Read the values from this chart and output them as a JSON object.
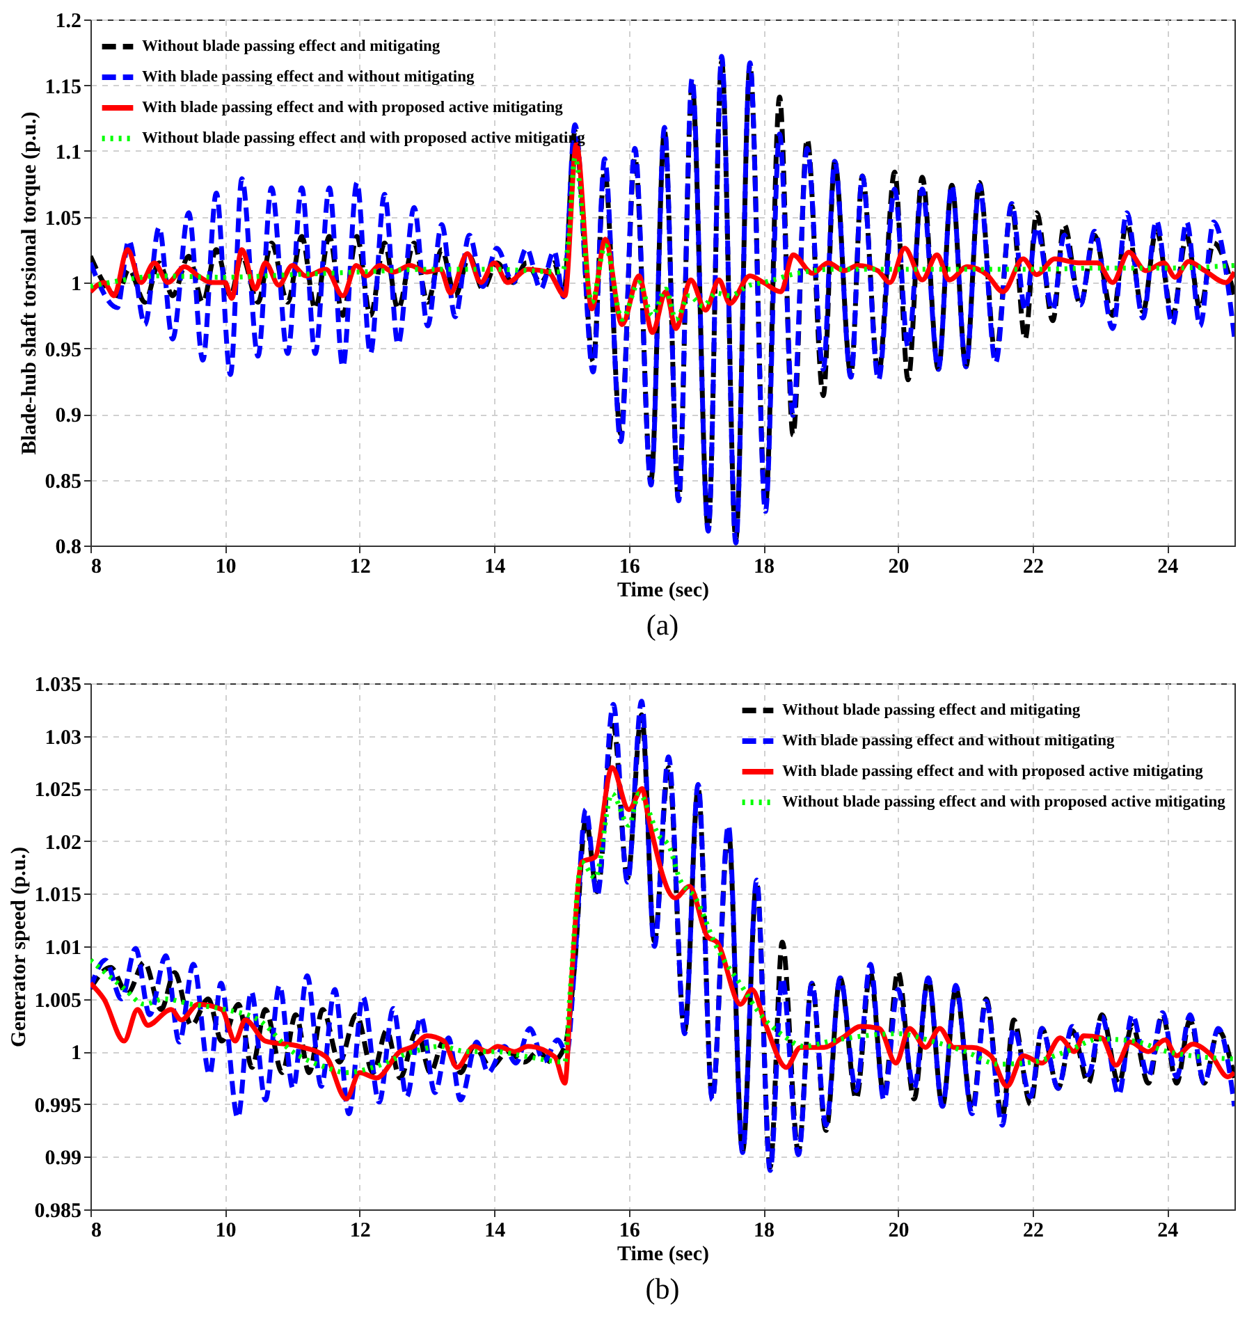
{
  "chart_data": [
    {
      "type": "line",
      "title": "(a)",
      "xlabel": "Time (sec)",
      "ylabel": "Blade-hub shaft torsional torque (p.u.)",
      "xlim": [
        8,
        25
      ],
      "ylim": [
        0.8,
        1.2
      ],
      "xticks": [
        8,
        10,
        12,
        14,
        16,
        18,
        20,
        22,
        24
      ],
      "yticks": [
        0.8,
        0.85,
        0.9,
        0.95,
        1,
        1.05,
        1.1,
        1.15,
        1.2
      ],
      "grid": true,
      "legend": "top left",
      "series": [
        {
          "name": "Without blade passing effect and mitigating",
          "color": "#000000",
          "line_style": "dashed",
          "x": [
            8.0,
            8.4,
            8.57,
            8.81,
            9.02,
            9.22,
            9.46,
            9.67,
            9.87,
            10.08,
            10.25,
            10.49,
            10.69,
            10.93,
            11.14,
            11.34,
            11.55,
            11.75,
            11.96,
            12.16,
            12.37,
            12.57,
            12.81,
            13.01,
            13.22,
            13.42,
            13.63,
            13.83,
            14.04,
            14.28,
            14.48,
            14.69,
            14.89,
            15.03,
            15.2,
            15.47,
            15.64,
            15.88,
            16.09,
            16.33,
            16.53,
            16.74,
            16.94,
            17.18,
            17.38,
            17.59,
            17.8,
            18.03,
            18.24,
            18.44,
            18.65,
            18.89,
            19.06,
            19.3,
            19.47,
            19.71,
            19.95,
            20.15,
            20.36,
            20.6,
            20.8,
            21.01,
            21.21,
            21.45,
            21.69,
            21.89,
            22.06,
            22.3,
            22.47,
            22.71,
            22.92,
            23.19,
            23.4,
            23.64,
            23.84,
            24.08,
            24.29,
            24.49,
            24.69,
            25.0
          ],
          "values": [
            1.02,
            0.99,
            1.01,
            0.985,
            1.015,
            0.99,
            1.02,
            0.985,
            1.025,
            0.99,
            1.02,
            0.985,
            1.03,
            0.985,
            1.035,
            0.98,
            1.035,
            0.975,
            1.035,
            0.975,
            1.03,
            0.98,
            1.03,
            0.985,
            1.025,
            0.99,
            1.02,
            0.995,
            1.015,
            1.0,
            1.015,
            1.0,
            1.015,
            0.99,
            1.115,
            0.94,
            1.085,
            0.885,
            1.095,
            0.85,
            1.115,
            0.835,
            1.15,
            0.813,
            1.168,
            0.805,
            1.165,
            0.83,
            1.141,
            0.884,
            1.109,
            0.914,
            1.092,
            0.93,
            1.081,
            0.93,
            1.084,
            0.926,
            1.08,
            0.934,
            1.074,
            0.936,
            1.076,
            0.945,
            1.058,
            0.957,
            1.053,
            0.971,
            1.044,
            0.983,
            1.036,
            0.975,
            1.045,
            0.978,
            1.04,
            0.975,
            1.035,
            0.98,
            1.03,
            0.99
          ]
        },
        {
          "name": "With blade passing effect and without mitigating",
          "color": "#0000ff",
          "line_style": "dashed",
          "x": [
            8.0,
            8.4,
            8.57,
            8.81,
            9.02,
            9.22,
            9.46,
            9.67,
            9.87,
            10.08,
            10.25,
            10.49,
            10.69,
            10.93,
            11.14,
            11.34,
            11.55,
            11.75,
            11.96,
            12.16,
            12.37,
            12.57,
            12.81,
            13.01,
            13.22,
            13.42,
            13.63,
            13.83,
            14.04,
            14.28,
            14.48,
            14.69,
            14.89,
            15.03,
            15.2,
            15.47,
            15.64,
            15.88,
            16.09,
            16.33,
            16.53,
            16.74,
            16.94,
            17.18,
            17.38,
            17.59,
            17.8,
            18.03,
            18.24,
            18.44,
            18.65,
            18.89,
            19.06,
            19.3,
            19.47,
            19.71,
            19.95,
            20.15,
            20.36,
            20.6,
            20.8,
            21.01,
            21.21,
            21.45,
            21.69,
            21.89,
            22.06,
            22.3,
            22.47,
            22.71,
            22.92,
            23.19,
            23.4,
            23.64,
            23.84,
            24.08,
            24.29,
            24.49,
            24.69,
            25.0
          ],
          "values": [
            1.015,
            0.981,
            1.032,
            0.968,
            1.042,
            0.957,
            1.053,
            0.941,
            1.068,
            0.93,
            1.079,
            0.944,
            1.072,
            0.946,
            1.072,
            0.946,
            1.072,
            0.936,
            1.076,
            0.946,
            1.067,
            0.953,
            1.057,
            0.967,
            1.044,
            0.974,
            1.036,
            0.997,
            1.026,
            1.0,
            1.026,
            0.995,
            1.024,
            0.989,
            1.12,
            0.932,
            1.094,
            0.879,
            1.102,
            0.846,
            1.118,
            0.834,
            1.155,
            0.811,
            1.172,
            0.802,
            1.167,
            0.826,
            1.113,
            0.899,
            1.102,
            0.934,
            1.092,
            0.928,
            1.081,
            0.926,
            1.071,
            0.951,
            1.071,
            0.934,
            1.074,
            0.936,
            1.074,
            0.939,
            1.06,
            0.979,
            1.042,
            0.979,
            1.036,
            0.983,
            1.039,
            0.965,
            1.053,
            0.973,
            1.047,
            0.968,
            1.046,
            0.967,
            1.046,
            0.958
          ]
        },
        {
          "name": "With blade passing effect and with proposed active mitigating",
          "color": "#ff0000",
          "line_style": "solid",
          "x": [
            8.0,
            8.2,
            8.35,
            8.55,
            8.75,
            8.95,
            9.15,
            9.4,
            9.6,
            9.8,
            10.0,
            10.1,
            10.25,
            10.45,
            10.6,
            10.8,
            11.0,
            11.2,
            11.5,
            11.75,
            11.95,
            12.1,
            12.3,
            12.5,
            12.75,
            13.0,
            13.2,
            13.35,
            13.6,
            13.8,
            14.0,
            14.2,
            14.5,
            14.8,
            15.05,
            15.22,
            15.45,
            15.65,
            15.9,
            16.15,
            16.35,
            16.55,
            16.7,
            16.92,
            17.14,
            17.34,
            17.5,
            17.8,
            18.0,
            18.26,
            18.44,
            18.73,
            18.96,
            19.2,
            19.4,
            19.7,
            19.88,
            20.1,
            20.36,
            20.58,
            20.76,
            21.03,
            21.32,
            21.56,
            21.86,
            22.06,
            22.33,
            22.68,
            22.96,
            23.19,
            23.43,
            23.68,
            23.95,
            24.12,
            24.32,
            24.56,
            24.87,
            25.0
          ],
          "values": [
            0.993,
            1.0,
            0.99,
            1.025,
            1.0,
            1.015,
            1.0,
            1.012,
            1.005,
            1.0,
            1.0,
            0.988,
            1.025,
            0.995,
            1.015,
            0.998,
            1.013,
            1.005,
            1.01,
            0.99,
            1.013,
            1.005,
            1.013,
            1.008,
            1.013,
            1.008,
            1.01,
            0.992,
            1.022,
            1.0,
            1.015,
            1.0,
            1.01,
            1.008,
            0.99,
            1.105,
            0.98,
            1.033,
            0.968,
            1.005,
            0.962,
            0.993,
            0.965,
            1.002,
            0.979,
            1.002,
            0.984,
            1.005,
            1.0,
            0.993,
            1.021,
            1.007,
            1.015,
            1.009,
            1.013,
            1.009,
            1.0,
            1.026,
            1.002,
            1.021,
            1.002,
            1.012,
            1.006,
            0.993,
            1.018,
            1.006,
            1.018,
            1.015,
            1.015,
            1.0,
            1.023,
            1.009,
            1.015,
            1.004,
            1.016,
            1.009,
            1.0,
            1.008
          ]
        },
        {
          "name": "Without blade passing effect and with proposed active mitigating",
          "color": "#00ff00",
          "line_style": "dotted",
          "x": [
            8.0,
            8.5,
            9.0,
            10.0,
            11.0,
            12.0,
            13.0,
            14.0,
            15.0,
            15.1,
            15.2,
            15.45,
            15.65,
            15.9,
            16.15,
            16.35,
            16.55,
            16.7,
            16.9,
            17.1,
            17.3,
            17.5,
            17.8,
            18.0,
            18.5,
            19.0,
            20.0,
            21.0,
            22.0,
            23.0,
            24.0,
            25.0
          ],
          "values": [
            0.997,
            1.002,
            1.005,
            1.004,
            1.006,
            1.008,
            1.01,
            1.01,
            1.008,
            1.03,
            1.095,
            0.985,
            1.028,
            0.972,
            1.0,
            0.975,
            0.995,
            0.972,
            0.99,
            0.982,
            0.992,
            0.99,
            0.998,
            1.0,
            1.007,
            1.01,
            1.01,
            1.01,
            1.01,
            1.011,
            1.011,
            1.013
          ]
        }
      ]
    },
    {
      "type": "line",
      "title": "(b)",
      "xlabel": "Time (sec)",
      "ylabel": "Generator speed (p.u.)",
      "xlim": [
        8,
        25
      ],
      "ylim": [
        0.985,
        1.035
      ],
      "xticks": [
        8,
        10,
        12,
        14,
        16,
        18,
        20,
        22,
        24
      ],
      "yticks": [
        0.985,
        0.99,
        0.995,
        1,
        1.005,
        1.01,
        1.015,
        1.02,
        1.025,
        1.03,
        1.035
      ],
      "grid": true,
      "legend": "top right",
      "series": [
        {
          "name": "Without blade passing effect and mitigating",
          "color": "#000000",
          "line_style": "dashed",
          "x": [
            8.0,
            8.3,
            8.55,
            8.8,
            9.05,
            9.25,
            9.5,
            9.75,
            9.95,
            10.2,
            10.4,
            10.6,
            10.85,
            11.05,
            11.25,
            11.45,
            11.7,
            11.95,
            12.2,
            12.4,
            12.6,
            12.85,
            13.05,
            13.25,
            13.5,
            13.7,
            13.95,
            14.2,
            14.45,
            14.65,
            14.85,
            15.05,
            15.19,
            15.36,
            15.53,
            15.77,
            15.98,
            16.19,
            16.38,
            16.59,
            16.83,
            17.03,
            17.24,
            17.48,
            17.69,
            17.9,
            18.1,
            18.28,
            18.52,
            18.72,
            18.93,
            19.14,
            19.38,
            19.59,
            19.79,
            20.0,
            20.24,
            20.45,
            20.66,
            20.86,
            21.1,
            21.31,
            21.55,
            21.72,
            21.97,
            22.14,
            22.38,
            22.59,
            22.83,
            23.03,
            23.28,
            23.48,
            23.72,
            23.93,
            24.14,
            24.34,
            24.55,
            24.76,
            25.0
          ],
          "values": [
            1.006,
            1.008,
            1.0055,
            1.0085,
            1.004,
            1.0075,
            1.0025,
            1.005,
            1.001,
            1.0045,
            0.9985,
            1.004,
            0.998,
            1.0035,
            0.998,
            1.004,
            0.999,
            1.0035,
            0.998,
            1.002,
            0.9975,
            1.002,
            0.998,
            1.001,
            0.998,
            1.0005,
            0.9985,
            1.0,
            0.999,
            1.0,
            0.999,
            1.0005,
            1.0078,
            1.022,
            1.0152,
            1.031,
            1.0165,
            1.032,
            1.0105,
            1.027,
            1.002,
            1.025,
            0.9956,
            1.021,
            0.9905,
            1.016,
            0.989,
            1.0104,
            0.9905,
            1.0065,
            0.9925,
            1.007,
            0.9955,
            1.0075,
            0.9958,
            1.0076,
            0.9955,
            1.007,
            0.9948,
            1.006,
            0.9945,
            1.005,
            0.9938,
            1.003,
            0.995,
            1.0022,
            0.9965,
            1.002,
            0.997,
            1.0035,
            0.997,
            1.0025,
            0.997,
            1.0035,
            0.997,
            1.003,
            0.997,
            1.002,
            0.9975
          ]
        },
        {
          "name": "With blade passing effect and without mitigating",
          "color": "#0000ff",
          "line_style": "dashed",
          "x": [
            8.0,
            8.22,
            8.46,
            8.67,
            8.88,
            9.12,
            9.32,
            9.53,
            9.77,
            9.94,
            10.19,
            10.39,
            10.6,
            10.81,
            11.01,
            11.22,
            11.43,
            11.63,
            11.84,
            12.05,
            12.29,
            12.5,
            12.7,
            12.91,
            13.12,
            13.32,
            13.5,
            13.74,
            13.91,
            14.15,
            14.32,
            14.53,
            14.74,
            14.94,
            15.08,
            15.19,
            15.36,
            15.53,
            15.77,
            15.98,
            16.19,
            16.38,
            16.59,
            16.83,
            17.03,
            17.24,
            17.48,
            17.69,
            17.9,
            18.1,
            18.28,
            18.52,
            18.72,
            18.93,
            19.14,
            19.38,
            19.59,
            19.79,
            20.0,
            20.24,
            20.45,
            20.66,
            20.86,
            21.1,
            21.31,
            21.55,
            21.72,
            21.97,
            22.14,
            22.38,
            22.59,
            22.83,
            23.03,
            23.28,
            23.48,
            23.72,
            23.93,
            24.14,
            24.34,
            24.55,
            24.76,
            25.0
          ],
          "values": [
            1.006,
            1.0087,
            1.005,
            1.0098,
            1.0035,
            1.0091,
            1.0009,
            1.0083,
            0.9978,
            1.0065,
            0.9937,
            1.0057,
            0.9954,
            1.0063,
            0.9965,
            1.0072,
            0.9967,
            1.0059,
            0.9941,
            1.0052,
            0.9952,
            1.0041,
            0.9957,
            1.0033,
            0.9961,
            1.0013,
            0.9954,
            1.0009,
            0.998,
            1.0005,
            0.9989,
            1.0022,
            0.9991,
            1.0011,
            0.9999,
            1.0078,
            1.023,
            1.0148,
            1.033,
            1.0161,
            1.0333,
            1.01,
            1.028,
            1.0017,
            1.0254,
            0.9954,
            1.0215,
            0.9904,
            1.0163,
            0.9887,
            1.007,
            0.9902,
            1.0065,
            0.993,
            1.007,
            0.9963,
            1.0083,
            0.9954,
            1.0059,
            0.9965,
            1.007,
            0.9948,
            1.0063,
            0.9941,
            1.0048,
            0.993,
            1.0022,
            0.9957,
            1.0022,
            0.9965,
            1.0024,
            0.9978,
            1.0033,
            0.9959,
            1.0035,
            0.9976,
            1.0037,
            0.9976,
            1.0035,
            0.997,
            1.0022,
            0.9948
          ]
        },
        {
          "name": "With blade passing effect and with proposed active mitigating",
          "color": "#ff0000",
          "line_style": "solid",
          "x": [
            8.0,
            8.2,
            8.5,
            8.7,
            8.85,
            9.2,
            9.35,
            9.6,
            9.95,
            10.15,
            10.3,
            10.6,
            11.1,
            11.5,
            11.8,
            12.0,
            12.25,
            12.6,
            12.8,
            13.0,
            13.25,
            13.45,
            13.7,
            13.9,
            14.05,
            14.3,
            14.5,
            14.9,
            15.05,
            15.15,
            15.3,
            15.5,
            15.75,
            16.0,
            16.2,
            16.28,
            16.69,
            16.9,
            17.17,
            17.31,
            17.66,
            17.83,
            18.03,
            18.34,
            18.55,
            18.9,
            19.17,
            19.45,
            19.72,
            19.97,
            20.17,
            20.41,
            20.62,
            20.83,
            21.1,
            21.38,
            21.62,
            21.86,
            22.14,
            22.41,
            22.62,
            22.76,
            23.03,
            23.24,
            23.45,
            23.72,
            23.97,
            24.14,
            24.38,
            24.66,
            24.9,
            25.0
          ],
          "values": [
            1.0065,
            1.005,
            1.001,
            1.004,
            1.0025,
            1.004,
            1.003,
            1.0045,
            1.004,
            1.001,
            1.003,
            1.001,
            1.0005,
            0.9995,
            0.9955,
            0.998,
            0.9975,
            1.0,
            1.0005,
            1.0015,
            1.001,
            0.9985,
            1.0005,
            1.0,
            1.0005,
            1.0,
            1.0005,
            0.9995,
            0.997,
            1.007,
            1.018,
            1.0185,
            1.027,
            1.023,
            1.025,
            1.0226,
            1.0146,
            1.0157,
            1.0109,
            1.0104,
            1.0045,
            1.0059,
            1.0026,
            0.9985,
            1.0004,
            1.0004,
            1.0013,
            1.0024,
            1.0022,
            0.9989,
            1.0022,
            1.0004,
            1.0022,
            1.0004,
            1.0004,
            0.9996,
            0.9967,
            0.9996,
            0.9989,
            1.0013,
            1.0,
            1.0015,
            1.0013,
            0.9987,
            1.0009,
            1.0,
            1.0011,
            0.9996,
            1.0007,
            0.9996,
            0.9976,
            0.998
          ]
        },
        {
          "name": "Without blade passing effect and with proposed active mitigating",
          "color": "#00ff00",
          "line_style": "dotted",
          "x": [
            8.0,
            8.5,
            8.8,
            9.1,
            9.5,
            10.0,
            10.5,
            11.0,
            11.5,
            11.8,
            12.2,
            12.8,
            13.2,
            13.6,
            14.0,
            14.5,
            15.05,
            15.12,
            15.3,
            15.5,
            15.75,
            16.0,
            16.15,
            16.45,
            16.6,
            16.75,
            17.0,
            17.3,
            17.7,
            17.9,
            18.3,
            18.6,
            19.0,
            19.5,
            20.0,
            20.5,
            21.0,
            21.5,
            22.0,
            22.5,
            23.0,
            23.5,
            24.0,
            24.5,
            25.0
          ],
          "values": [
            1.0087,
            1.006,
            1.0045,
            1.005,
            1.0045,
            1.004,
            1.003,
            1.0,
            0.9985,
            0.998,
            0.9985,
            1.0,
            1.0005,
            1.0,
            1.0,
            0.9995,
            0.999,
            1.005,
            1.018,
            1.0165,
            1.0245,
            1.0215,
            1.0245,
            1.0205,
            1.0195,
            1.0165,
            1.0145,
            1.01,
            1.006,
            1.004,
            1.0015,
            1.0005,
            1.001,
            1.0015,
            1.0017,
            1.001,
            1.0,
            0.9988,
            0.999,
            1.0,
            1.0012,
            1.001,
            1.0,
            0.9995,
            0.9993
          ]
        }
      ]
    }
  ]
}
